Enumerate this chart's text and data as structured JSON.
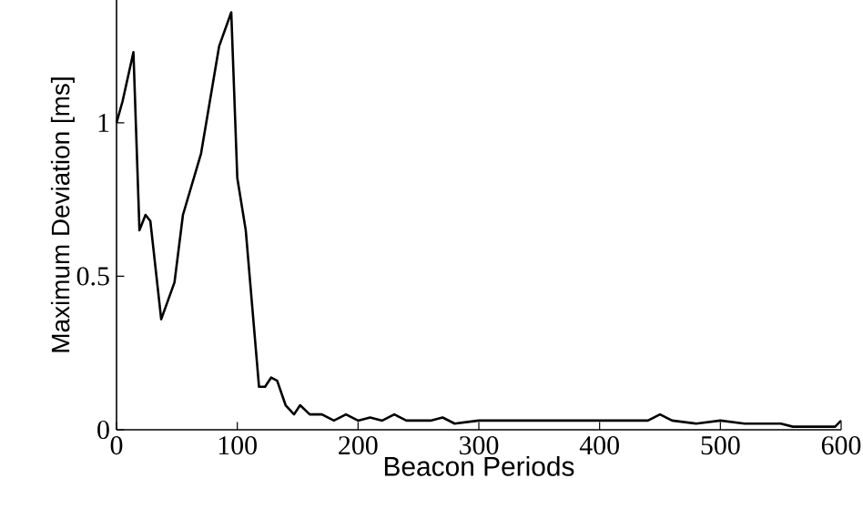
{
  "chart_data": {
    "type": "line",
    "xlabel": "Beacon Periods",
    "ylabel": "Maximum Deviation [ms]",
    "color": "#000000",
    "xlim": [
      0,
      600
    ],
    "ylim": [
      0,
      1.4
    ],
    "xticks": [
      0,
      100,
      200,
      300,
      400,
      500,
      600
    ],
    "yticks": [
      0,
      0.5,
      1
    ],
    "marker": "none",
    "line_style": "solid",
    "x": [
      0,
      5,
      14,
      19,
      24,
      28,
      37,
      48,
      55,
      70,
      85,
      95,
      100,
      107,
      118,
      123,
      128,
      133,
      140,
      147,
      152,
      160,
      170,
      180,
      190,
      200,
      210,
      220,
      230,
      240,
      260,
      270,
      280,
      300,
      320,
      350,
      380,
      400,
      420,
      440,
      450,
      460,
      480,
      500,
      520,
      550,
      560,
      580,
      595,
      600
    ],
    "values": [
      1.0,
      1.07,
      1.23,
      0.65,
      0.7,
      0.68,
      0.36,
      0.48,
      0.7,
      0.9,
      1.25,
      1.36,
      0.82,
      0.65,
      0.14,
      0.14,
      0.17,
      0.16,
      0.08,
      0.05,
      0.08,
      0.05,
      0.05,
      0.03,
      0.05,
      0.03,
      0.04,
      0.03,
      0.05,
      0.03,
      0.03,
      0.04,
      0.02,
      0.03,
      0.03,
      0.03,
      0.03,
      0.03,
      0.03,
      0.03,
      0.05,
      0.03,
      0.02,
      0.03,
      0.02,
      0.02,
      0.01,
      0.01,
      0.01,
      0.03
    ]
  }
}
